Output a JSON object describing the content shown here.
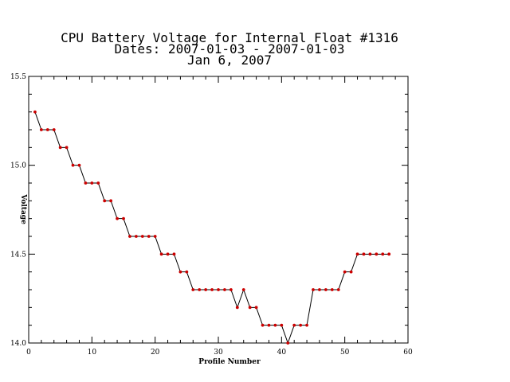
{
  "chart_data": {
    "type": "line",
    "title": [
      "CPU Battery Voltage for Internal Float #1316",
      "Dates:  2007-01-03 -  2007-01-03",
      "Jan  6, 2007"
    ],
    "xlabel": "Profile Number",
    "ylabel": "Voltage",
    "xlim": [
      0,
      60
    ],
    "ylim": [
      14.0,
      15.5
    ],
    "xticks": [
      0,
      10,
      20,
      30,
      40,
      50,
      60
    ],
    "xtick_labels": [
      "0",
      "10",
      "20",
      "30",
      "40",
      "50",
      "60"
    ],
    "yticks": [
      14.0,
      14.5,
      15.0,
      15.5
    ],
    "ytick_labels": [
      "14.0",
      "14.5",
      "15.0",
      "15.5"
    ],
    "line_color": "#000000",
    "marker_color": "#cc0000",
    "grid": false,
    "series": [
      {
        "x": [
          1,
          2,
          3,
          4,
          5,
          6,
          7,
          8,
          9,
          10,
          11,
          12,
          13,
          14,
          15,
          16,
          17,
          18,
          19,
          20,
          21,
          22,
          23,
          24,
          25,
          26,
          27,
          28,
          29,
          30,
          31,
          32,
          33,
          34,
          35,
          36,
          37,
          38,
          39,
          40,
          41,
          42,
          43,
          44,
          45,
          46,
          47,
          48,
          49,
          50,
          51,
          52,
          53,
          54,
          55,
          56,
          57
        ],
        "y": [
          15.3,
          15.2,
          15.2,
          15.2,
          15.1,
          15.1,
          15.0,
          15.0,
          14.9,
          14.9,
          14.9,
          14.8,
          14.8,
          14.7,
          14.7,
          14.6,
          14.6,
          14.6,
          14.6,
          14.6,
          14.5,
          14.5,
          14.5,
          14.4,
          14.4,
          14.3,
          14.3,
          14.3,
          14.3,
          14.3,
          14.3,
          14.3,
          14.2,
          14.3,
          14.2,
          14.2,
          14.1,
          14.1,
          14.1,
          14.1,
          14.0,
          14.1,
          14.1,
          14.1,
          14.3,
          14.3,
          14.3,
          14.3,
          14.3,
          14.4,
          14.4,
          14.5,
          14.5,
          14.5,
          14.5,
          14.5,
          14.5
        ]
      }
    ]
  }
}
